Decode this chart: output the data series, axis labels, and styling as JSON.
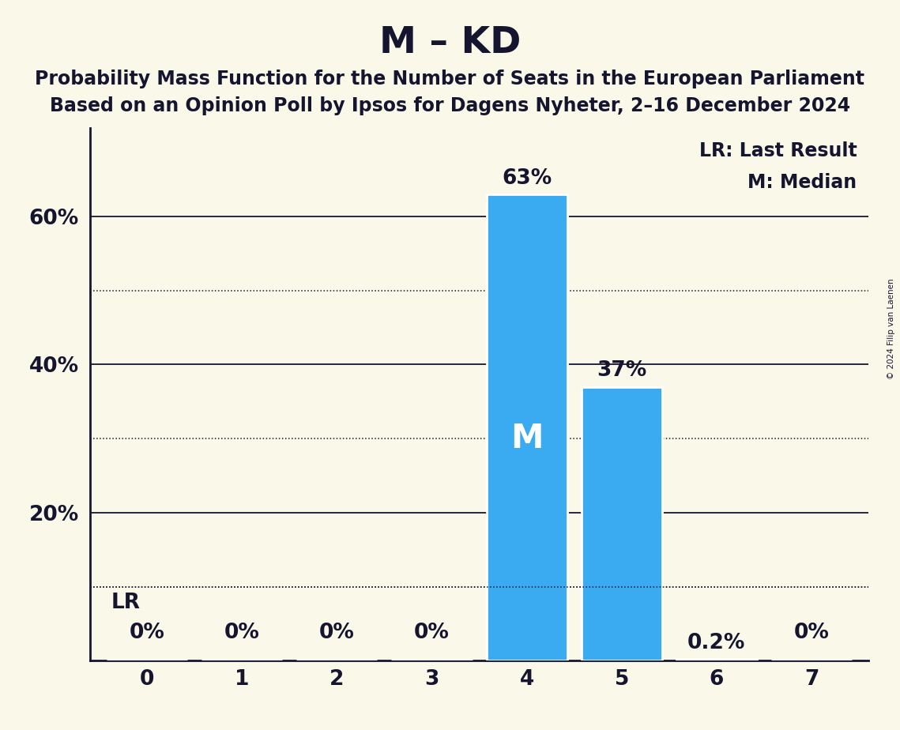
{
  "title": "M – KD",
  "subtitle_line1": "Probability Mass Function for the Number of Seats in the European Parliament",
  "subtitle_line2": "Based on an Opinion Poll by Ipsos for Dagens Nyheter, 2–16 December 2024",
  "copyright": "© 2024 Filip van Laenen",
  "seats": [
    0,
    1,
    2,
    3,
    4,
    5,
    6,
    7
  ],
  "probabilities": [
    0.0,
    0.0,
    0.0,
    0.0,
    0.63,
    0.37,
    0.002,
    0.0
  ],
  "bar_color": "#3aabf0",
  "background_color": "#faf8e8",
  "text_color": "#151530",
  "median_seat": 4,
  "last_result_prob": 0.1,
  "legend_lr": "LR: Last Result",
  "legend_m": "M: Median",
  "yticks": [
    0.2,
    0.4,
    0.6
  ],
  "ytick_labels": [
    "20%",
    "40%",
    "60%"
  ],
  "solid_yticks": [
    0.2,
    0.4,
    0.6
  ],
  "dotted_yticks": [
    0.1,
    0.3,
    0.5
  ],
  "ylim": [
    0,
    0.72
  ],
  "bar_labels": [
    "0%",
    "0%",
    "0%",
    "0%",
    "63%",
    "37%",
    "0.2%",
    "0%"
  ],
  "title_fontsize": 34,
  "subtitle_fontsize": 17,
  "label_fontsize": 19,
  "tick_fontsize": 19,
  "legend_fontsize": 17,
  "bar_width": 0.85
}
